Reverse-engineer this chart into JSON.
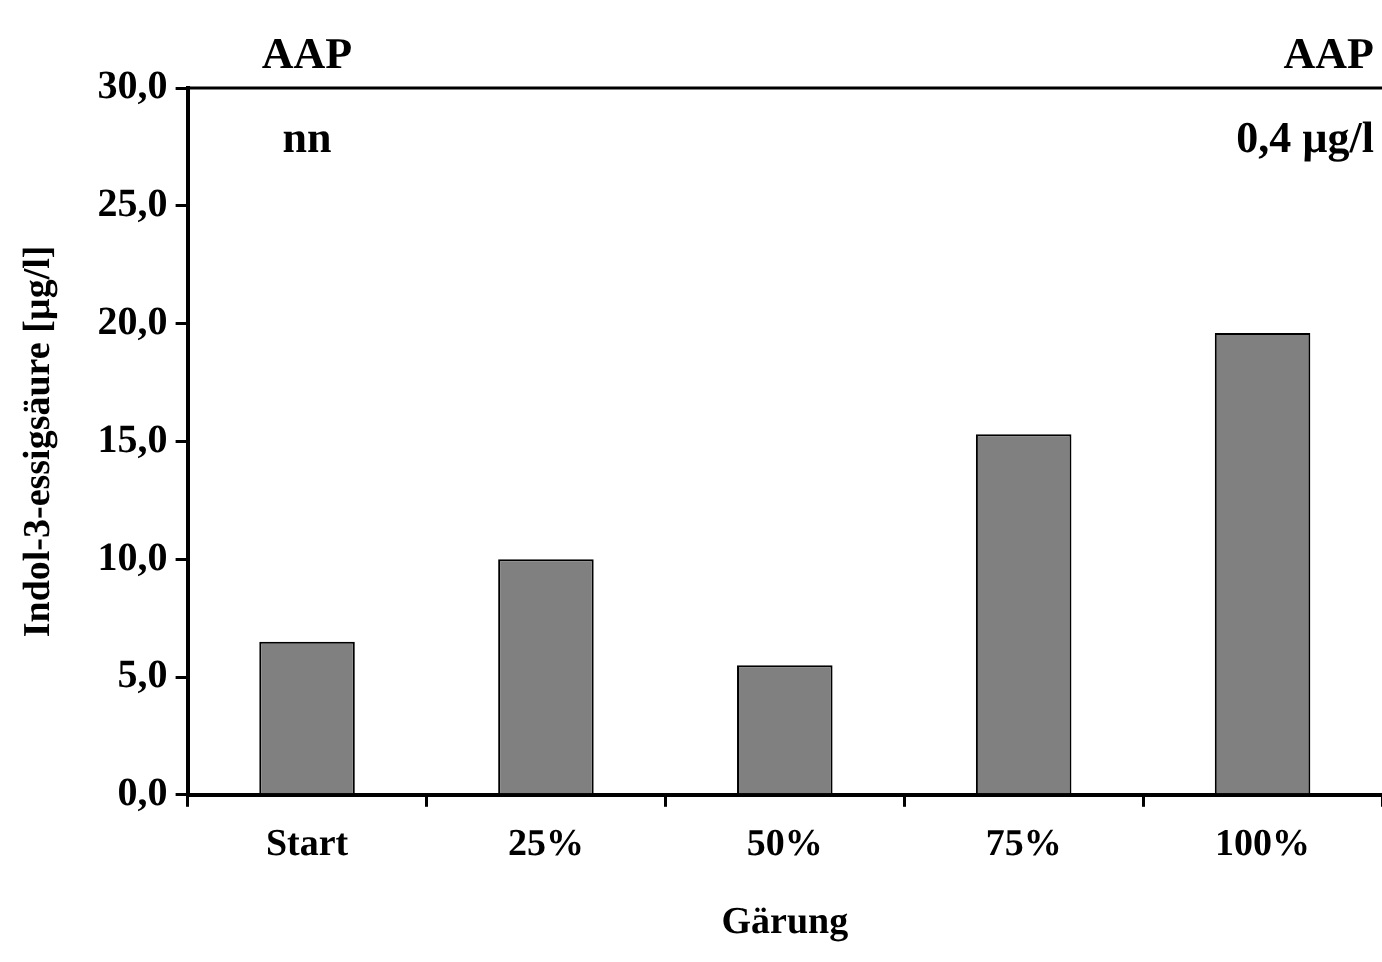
{
  "chart_data": {
    "type": "bar",
    "xlabel": "Gärung",
    "ylabel": "Indol-3-essigsäure [µg/l]",
    "categories": [
      "Start",
      "25%",
      "50%",
      "75%",
      "100%"
    ],
    "values": [
      6.5,
      10.0,
      5.5,
      15.3,
      19.6
    ],
    "color": "#808080",
    "ylim": [
      0,
      30
    ],
    "yticks": [
      {
        "value": 0,
        "label": "0,0"
      },
      {
        "value": 5,
        "label": "5,0"
      },
      {
        "value": 10,
        "label": "10,0"
      },
      {
        "value": 15,
        "label": "15,0"
      },
      {
        "value": 20,
        "label": "20,0"
      },
      {
        "value": 25,
        "label": "25,0"
      },
      {
        "value": 30,
        "label": "30,0"
      }
    ],
    "annotations": [
      "AAP",
      "nn",
      "AAP",
      "0,4 µg/l"
    ],
    "grid": false,
    "legend": false
  }
}
